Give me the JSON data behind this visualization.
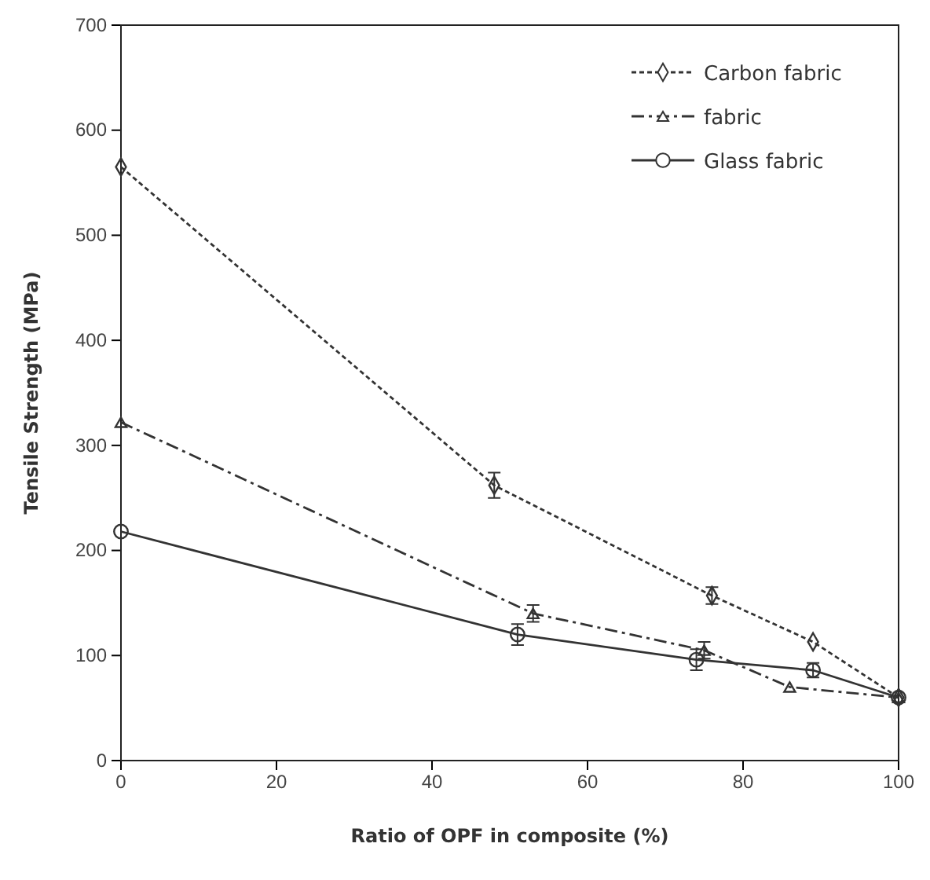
{
  "chart_data": {
    "type": "line",
    "xlabel": "Ratio of OPF in composite (%)",
    "ylabel": "Tensile Strength (MPa)",
    "xlim": [
      0,
      100
    ],
    "xticks": [
      0,
      20,
      40,
      60,
      80,
      100
    ],
    "ylim": [
      0,
      700
    ],
    "yticks": [
      0,
      100,
      200,
      300,
      400,
      500,
      600,
      700
    ],
    "grid": false,
    "legend": "top right",
    "series": [
      {
        "name": "Carbon fabric",
        "color": "#333333",
        "marker": "diamond",
        "line_style": "dotted",
        "x": [
          0,
          48,
          76,
          89,
          100
        ],
        "values": [
          565,
          262,
          157,
          113,
          60
        ],
        "errors": [
          null,
          12,
          8,
          null,
          null
        ]
      },
      {
        "name": "fabric",
        "color": "#333333",
        "marker": "triangle",
        "line_style": "dashed",
        "x": [
          0,
          53,
          75,
          86,
          100
        ],
        "values": [
          322,
          140,
          105,
          70,
          60
        ],
        "errors": [
          null,
          8,
          8,
          null,
          null
        ]
      },
      {
        "name": "Glass fabric",
        "color": "#333333",
        "marker": "circle",
        "line_style": "solid",
        "x": [
          0,
          51,
          74,
          89,
          100
        ],
        "values": [
          218,
          120,
          96,
          86,
          60
        ],
        "errors": [
          null,
          10,
          10,
          7,
          null
        ]
      }
    ]
  }
}
